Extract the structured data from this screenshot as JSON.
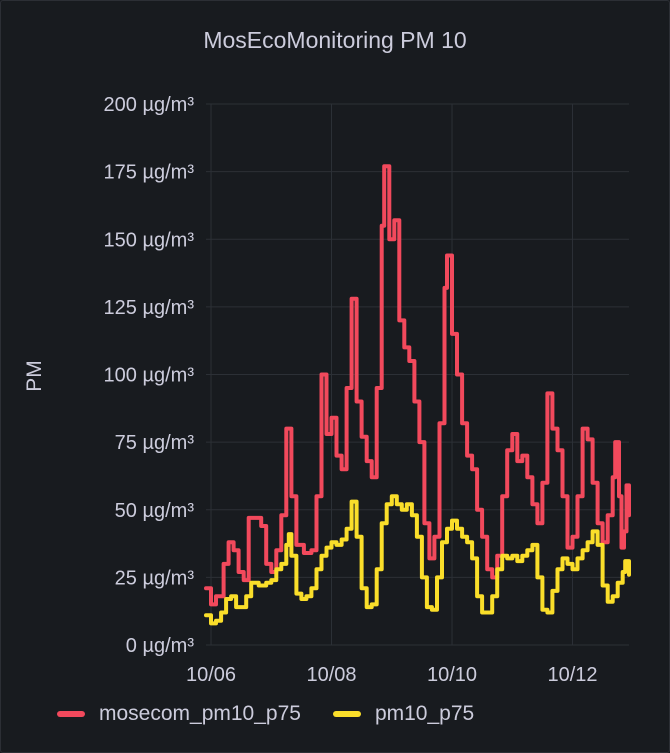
{
  "panel": {
    "title": "MosEcoMonitoring PM 10"
  },
  "chart_data": {
    "type": "line",
    "title": "MosEcoMonitoring PM 10",
    "ylabel": "PM",
    "xlabel": "",
    "ylim": [
      0,
      200
    ],
    "xlim": [
      "2023-10-05T22:00",
      "2023-10-12T22:30"
    ],
    "yticks": [
      "0 µg/m³",
      "25 µg/m³",
      "50 µg/m³",
      "75 µg/m³",
      "100 µg/m³",
      "125 µg/m³",
      "150 µg/m³",
      "175 µg/m³",
      "200 µg/m³"
    ],
    "xticks": [
      "10/06",
      "10/08",
      "10/10",
      "10/12"
    ],
    "xtick_values": [
      "2023-10-06T00:00",
      "2023-10-08T00:00",
      "2023-10-10T00:00",
      "2023-10-12T00:00"
    ],
    "grid": true,
    "legend": "bottom",
    "series": [
      {
        "name": "mosecom_pm10_p75",
        "color": "#f2495c",
        "points": [
          [
            "2023-10-05T22:00",
            21
          ],
          [
            "2023-10-06T00:00",
            15
          ],
          [
            "2023-10-06T02:00",
            18
          ],
          [
            "2023-10-06T05:00",
            30
          ],
          [
            "2023-10-06T07:00",
            38
          ],
          [
            "2023-10-06T09:00",
            35
          ],
          [
            "2023-10-06T11:00",
            27
          ],
          [
            "2023-10-06T13:00",
            24
          ],
          [
            "2023-10-06T15:00",
            47
          ],
          [
            "2023-10-06T17:00",
            47
          ],
          [
            "2023-10-06T20:00",
            44
          ],
          [
            "2023-10-06T22:00",
            30
          ],
          [
            "2023-10-07T00:00",
            27
          ],
          [
            "2023-10-07T02:00",
            35
          ],
          [
            "2023-10-07T04:00",
            48
          ],
          [
            "2023-10-07T06:00",
            80
          ],
          [
            "2023-10-07T08:00",
            55
          ],
          [
            "2023-10-07T10:00",
            37
          ],
          [
            "2023-10-07T13:00",
            34
          ],
          [
            "2023-10-07T16:00",
            35
          ],
          [
            "2023-10-07T18:00",
            55
          ],
          [
            "2023-10-07T20:00",
            100
          ],
          [
            "2023-10-07T22:00",
            78
          ],
          [
            "2023-10-08T00:00",
            84
          ],
          [
            "2023-10-08T02:00",
            70
          ],
          [
            "2023-10-08T04:00",
            65
          ],
          [
            "2023-10-08T06:00",
            95
          ],
          [
            "2023-10-08T08:00",
            128
          ],
          [
            "2023-10-08T10:00",
            90
          ],
          [
            "2023-10-08T12:00",
            77
          ],
          [
            "2023-10-08T14:00",
            68
          ],
          [
            "2023-10-08T16:00",
            62
          ],
          [
            "2023-10-08T18:00",
            95
          ],
          [
            "2023-10-08T20:00",
            155
          ],
          [
            "2023-10-08T21:00",
            177
          ],
          [
            "2023-10-08T23:00",
            150
          ],
          [
            "2023-10-09T01:00",
            157
          ],
          [
            "2023-10-09T03:00",
            120
          ],
          [
            "2023-10-09T05:00",
            110
          ],
          [
            "2023-10-09T07:00",
            105
          ],
          [
            "2023-10-09T09:00",
            90
          ],
          [
            "2023-10-09T11:00",
            75
          ],
          [
            "2023-10-09T13:00",
            45
          ],
          [
            "2023-10-09T15:00",
            32
          ],
          [
            "2023-10-09T17:00",
            40
          ],
          [
            "2023-10-09T19:00",
            82
          ],
          [
            "2023-10-09T21:00",
            132
          ],
          [
            "2023-10-09T22:00",
            144
          ],
          [
            "2023-10-10T00:00",
            115
          ],
          [
            "2023-10-10T02:00",
            100
          ],
          [
            "2023-10-10T04:00",
            82
          ],
          [
            "2023-10-10T06:00",
            70
          ],
          [
            "2023-10-10T08:00",
            65
          ],
          [
            "2023-10-10T10:00",
            50
          ],
          [
            "2023-10-10T12:00",
            40
          ],
          [
            "2023-10-10T14:00",
            28
          ],
          [
            "2023-10-10T16:00",
            25
          ],
          [
            "2023-10-10T18:00",
            33
          ],
          [
            "2023-10-10T20:00",
            55
          ],
          [
            "2023-10-10T22:00",
            72
          ],
          [
            "2023-10-11T00:00",
            78
          ],
          [
            "2023-10-11T02:00",
            68
          ],
          [
            "2023-10-11T04:00",
            70
          ],
          [
            "2023-10-11T06:00",
            62
          ],
          [
            "2023-10-11T08:00",
            52
          ],
          [
            "2023-10-11T10:00",
            45
          ],
          [
            "2023-10-11T12:00",
            60
          ],
          [
            "2023-10-11T14:00",
            93
          ],
          [
            "2023-10-11T16:00",
            80
          ],
          [
            "2023-10-11T18:00",
            72
          ],
          [
            "2023-10-11T20:00",
            55
          ],
          [
            "2023-10-11T22:00",
            36
          ],
          [
            "2023-10-12T00:00",
            40
          ],
          [
            "2023-10-12T02:00",
            55
          ],
          [
            "2023-10-12T04:00",
            80
          ],
          [
            "2023-10-12T06:00",
            76
          ],
          [
            "2023-10-12T08:00",
            60
          ],
          [
            "2023-10-12T10:00",
            45
          ],
          [
            "2023-10-12T12:00",
            38
          ],
          [
            "2023-10-12T14:00",
            48
          ],
          [
            "2023-10-12T16:00",
            62
          ],
          [
            "2023-10-12T17:00",
            75
          ],
          [
            "2023-10-12T18:30",
            55
          ],
          [
            "2023-10-12T19:30",
            36
          ],
          [
            "2023-10-12T20:30",
            42
          ],
          [
            "2023-10-12T21:30",
            59
          ],
          [
            "2023-10-12T22:30",
            48
          ]
        ]
      },
      {
        "name": "pm10_p75",
        "color": "#fade2a",
        "points": [
          [
            "2023-10-05T22:00",
            11
          ],
          [
            "2023-10-06T00:00",
            8
          ],
          [
            "2023-10-06T02:00",
            9
          ],
          [
            "2023-10-06T04:00",
            12
          ],
          [
            "2023-10-06T06:00",
            17
          ],
          [
            "2023-10-06T08:00",
            18
          ],
          [
            "2023-10-06T10:00",
            14
          ],
          [
            "2023-10-06T12:00",
            14
          ],
          [
            "2023-10-06T14:00",
            18
          ],
          [
            "2023-10-06T16:00",
            23
          ],
          [
            "2023-10-06T19:00",
            22
          ],
          [
            "2023-10-06T22:00",
            23
          ],
          [
            "2023-10-07T00:00",
            24
          ],
          [
            "2023-10-07T02:00",
            28
          ],
          [
            "2023-10-07T04:00",
            30
          ],
          [
            "2023-10-07T06:00",
            37
          ],
          [
            "2023-10-07T07:00",
            41
          ],
          [
            "2023-10-07T08:00",
            33
          ],
          [
            "2023-10-07T10:00",
            19
          ],
          [
            "2023-10-07T12:00",
            17
          ],
          [
            "2023-10-07T14:00",
            18
          ],
          [
            "2023-10-07T16:00",
            21
          ],
          [
            "2023-10-07T18:00",
            28
          ],
          [
            "2023-10-07T20:00",
            33
          ],
          [
            "2023-10-07T22:00",
            36
          ],
          [
            "2023-10-08T00:00",
            38
          ],
          [
            "2023-10-08T02:00",
            37
          ],
          [
            "2023-10-08T04:00",
            39
          ],
          [
            "2023-10-08T06:00",
            43
          ],
          [
            "2023-10-08T08:00",
            53
          ],
          [
            "2023-10-08T10:00",
            40
          ],
          [
            "2023-10-08T12:00",
            21
          ],
          [
            "2023-10-08T14:00",
            14
          ],
          [
            "2023-10-08T16:00",
            15
          ],
          [
            "2023-10-08T18:00",
            28
          ],
          [
            "2023-10-08T20:00",
            45
          ],
          [
            "2023-10-08T22:00",
            52
          ],
          [
            "2023-10-09T00:00",
            55
          ],
          [
            "2023-10-09T02:00",
            52
          ],
          [
            "2023-10-09T04:00",
            50
          ],
          [
            "2023-10-09T06:00",
            52
          ],
          [
            "2023-10-09T08:00",
            48
          ],
          [
            "2023-10-09T10:00",
            40
          ],
          [
            "2023-10-09T12:00",
            25
          ],
          [
            "2023-10-09T14:00",
            14
          ],
          [
            "2023-10-09T16:00",
            13
          ],
          [
            "2023-10-09T18:00",
            25
          ],
          [
            "2023-10-09T20:00",
            38
          ],
          [
            "2023-10-09T22:00",
            43
          ],
          [
            "2023-10-10T00:00",
            46
          ],
          [
            "2023-10-10T02:00",
            43
          ],
          [
            "2023-10-10T04:00",
            40
          ],
          [
            "2023-10-10T06:00",
            38
          ],
          [
            "2023-10-10T08:00",
            32
          ],
          [
            "2023-10-10T10:00",
            18
          ],
          [
            "2023-10-10T12:00",
            12
          ],
          [
            "2023-10-10T14:00",
            12
          ],
          [
            "2023-10-10T16:00",
            18
          ],
          [
            "2023-10-10T18:00",
            28
          ],
          [
            "2023-10-10T20:00",
            33
          ],
          [
            "2023-10-10T22:00",
            32
          ],
          [
            "2023-10-11T00:00",
            33
          ],
          [
            "2023-10-11T02:00",
            31
          ],
          [
            "2023-10-11T04:00",
            33
          ],
          [
            "2023-10-11T06:00",
            35
          ],
          [
            "2023-10-11T08:00",
            37
          ],
          [
            "2023-10-11T10:00",
            25
          ],
          [
            "2023-10-11T12:00",
            13
          ],
          [
            "2023-10-11T14:00",
            12
          ],
          [
            "2023-10-11T16:00",
            20
          ],
          [
            "2023-10-11T18:00",
            28
          ],
          [
            "2023-10-11T20:00",
            32
          ],
          [
            "2023-10-11T22:00",
            30
          ],
          [
            "2023-10-12T00:00",
            28
          ],
          [
            "2023-10-12T02:00",
            32
          ],
          [
            "2023-10-12T04:00",
            35
          ],
          [
            "2023-10-12T06:00",
            38
          ],
          [
            "2023-10-12T08:00",
            42
          ],
          [
            "2023-10-12T10:00",
            37
          ],
          [
            "2023-10-12T12:00",
            22
          ],
          [
            "2023-10-12T14:00",
            16
          ],
          [
            "2023-10-12T16:00",
            18
          ],
          [
            "2023-10-12T18:00",
            23
          ],
          [
            "2023-10-12T20:00",
            27
          ],
          [
            "2023-10-12T21:00",
            31
          ],
          [
            "2023-10-12T22:30",
            26
          ]
        ]
      }
    ]
  }
}
